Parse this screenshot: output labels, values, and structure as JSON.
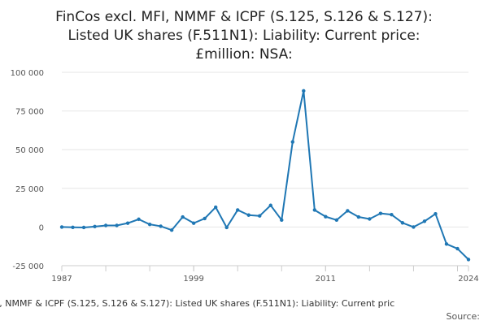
{
  "chart_data": {
    "type": "line",
    "title_lines": [
      "FinCos excl. MFI, NMMF & ICPF (S.125, S.126 & S.127):",
      "Listed UK shares (F.511N1): Liability: Current price:",
      "£million: NSA:"
    ],
    "x_tick_labels": [
      "1987",
      "1999",
      "2011",
      "2024"
    ],
    "y_tick_labels": [
      "100 000",
      "75 000",
      "50 000",
      "25 000",
      "0",
      "-25 000"
    ],
    "y_tick_values": [
      100000,
      75000,
      50000,
      25000,
      0,
      -25000
    ],
    "ylim": [
      -25000,
      100000
    ],
    "xlim": [
      1987,
      2024
    ],
    "series": [
      {
        "name": "Listed UK shares (F.511N1): Liability",
        "color": "#1f77b4",
        "x": [
          1987,
          1988,
          1989,
          1990,
          1991,
          1992,
          1993,
          1994,
          1995,
          1996,
          1997,
          1998,
          1999,
          2000,
          2001,
          2002,
          2003,
          2004,
          2005,
          2006,
          2007,
          2008,
          2009,
          2010,
          2011,
          2012,
          2013,
          2014,
          2015,
          2016,
          2017,
          2018,
          2019,
          2020,
          2021,
          2022,
          2023,
          2024
        ],
        "values": [
          0,
          -200,
          -300,
          300,
          1000,
          1000,
          2500,
          5000,
          1700,
          500,
          -2000,
          6500,
          2500,
          5500,
          12800,
          -300,
          11000,
          7700,
          7200,
          14000,
          4500,
          55000,
          88000,
          11000,
          6700,
          4500,
          10500,
          6500,
          5200,
          8800,
          8000,
          2700,
          0,
          3700,
          8500,
          -11000,
          -14000,
          -21000
        ]
      }
    ]
  },
  "footer": {
    "series_title": "I, NMMF & ICPF (S.125, S.126 & S.127): Listed UK shares (F.511N1): Liability: Current pric",
    "source_label": "Source:"
  }
}
